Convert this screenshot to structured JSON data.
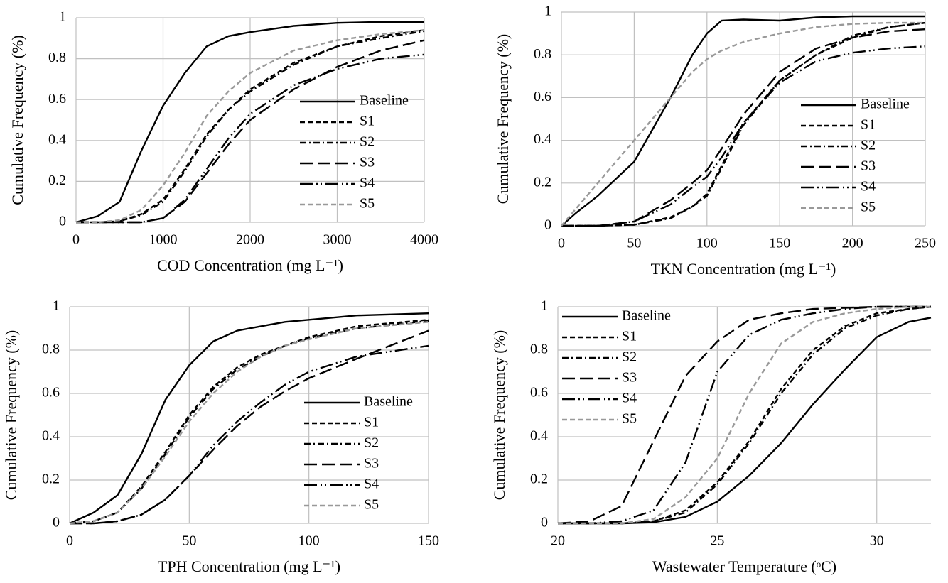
{
  "chart_data": [
    {
      "type": "line",
      "xlabel": "COD Concentration (mg L⁻¹)",
      "ylabel": "Cumulative Frequency (%)",
      "x": [
        0,
        250,
        500,
        750,
        1000,
        1250,
        1500,
        1750,
        2000,
        2500,
        3000,
        3500,
        4000
      ],
      "xlim": [
        0,
        4000
      ],
      "xticks": [
        0,
        1000,
        2000,
        3000,
        4000
      ],
      "ylim": [
        0,
        1
      ],
      "yticks": [
        0,
        0.2,
        0.4,
        0.6,
        0.8,
        1
      ],
      "grid": true,
      "legend": "lower right",
      "series": [
        {
          "name": "Baseline",
          "color": "#000000",
          "dash": "solid",
          "values": [
            0,
            0.03,
            0.1,
            0.35,
            0.57,
            0.73,
            0.86,
            0.91,
            0.93,
            0.96,
            0.975,
            0.98,
            0.98
          ]
        },
        {
          "name": "S1",
          "color": "#000000",
          "dash": "dash",
          "values": [
            0,
            0,
            0.005,
            0.04,
            0.11,
            0.26,
            0.43,
            0.55,
            0.65,
            0.78,
            0.86,
            0.91,
            0.94
          ]
        },
        {
          "name": "S2",
          "color": "#000000",
          "dash": "dashdot",
          "values": [
            0,
            0,
            0.005,
            0.035,
            0.1,
            0.25,
            0.42,
            0.55,
            0.64,
            0.77,
            0.86,
            0.9,
            0.935
          ]
        },
        {
          "name": "S3",
          "color": "#000000",
          "dash": "longdash",
          "values": [
            0,
            0,
            0,
            0,
            0.02,
            0.1,
            0.24,
            0.38,
            0.5,
            0.65,
            0.76,
            0.84,
            0.89
          ]
        },
        {
          "name": "S4",
          "color": "#000000",
          "dash": "longdashdotdot",
          "values": [
            0,
            0,
            0,
            0,
            0.02,
            0.11,
            0.26,
            0.41,
            0.53,
            0.67,
            0.75,
            0.8,
            0.82
          ]
        },
        {
          "name": "S5",
          "color": "#999999",
          "dash": "dash",
          "values": [
            0,
            0,
            0.01,
            0.06,
            0.18,
            0.34,
            0.52,
            0.64,
            0.73,
            0.84,
            0.89,
            0.92,
            0.94
          ]
        }
      ]
    },
    {
      "type": "line",
      "xlabel": "TKN Concentration (mg L⁻¹)",
      "ylabel": "Cumulative Frequency (%)",
      "x": [
        0,
        10,
        25,
        50,
        75,
        90,
        100,
        110,
        125,
        150,
        175,
        200,
        225,
        250
      ],
      "xlim": [
        0,
        250
      ],
      "xticks": [
        0,
        50,
        100,
        150,
        200,
        250
      ],
      "ylim": [
        0,
        1
      ],
      "yticks": [
        0,
        0.2,
        0.4,
        0.6,
        0.8,
        1
      ],
      "grid": true,
      "legend": "lower right",
      "series": [
        {
          "name": "Baseline",
          "color": "#000000",
          "dash": "solid",
          "values": [
            0,
            0.06,
            0.14,
            0.3,
            0.6,
            0.8,
            0.9,
            0.96,
            0.965,
            0.96,
            0.975,
            0.98,
            0.98,
            0.98
          ]
        },
        {
          "name": "S1",
          "color": "#000000",
          "dash": "dash",
          "values": [
            0,
            0,
            0,
            0.005,
            0.04,
            0.09,
            0.15,
            0.28,
            0.48,
            0.68,
            0.8,
            0.88,
            0.93,
            0.95
          ]
        },
        {
          "name": "S2",
          "color": "#000000",
          "dash": "dashdot",
          "values": [
            0,
            0,
            0,
            0.005,
            0.035,
            0.09,
            0.14,
            0.27,
            0.47,
            0.68,
            0.8,
            0.89,
            0.93,
            0.95
          ]
        },
        {
          "name": "S3",
          "color": "#000000",
          "dash": "longdash",
          "values": [
            0,
            0,
            0,
            0.02,
            0.12,
            0.2,
            0.26,
            0.36,
            0.52,
            0.72,
            0.83,
            0.88,
            0.91,
            0.92
          ]
        },
        {
          "name": "S4",
          "color": "#000000",
          "dash": "longdashdotdot",
          "values": [
            0,
            0,
            0,
            0.02,
            0.1,
            0.18,
            0.23,
            0.32,
            0.48,
            0.67,
            0.77,
            0.81,
            0.83,
            0.84
          ]
        },
        {
          "name": "S5",
          "color": "#999999",
          "dash": "dash",
          "values": [
            0,
            0.08,
            0.2,
            0.4,
            0.6,
            0.72,
            0.78,
            0.82,
            0.86,
            0.9,
            0.93,
            0.945,
            0.95,
            0.95
          ]
        }
      ]
    },
    {
      "type": "line",
      "xlabel": "TPH Concentration (mg L⁻¹)",
      "ylabel": "Cumulative Frequency (%)",
      "x": [
        0,
        10,
        20,
        30,
        40,
        50,
        60,
        70,
        80,
        90,
        100,
        120,
        150
      ],
      "xlim": [
        0,
        150
      ],
      "xticks": [
        0,
        50,
        100,
        150
      ],
      "ylim": [
        0,
        1
      ],
      "yticks": [
        0,
        0.2,
        0.4,
        0.6,
        0.8,
        1
      ],
      "grid": true,
      "legend": "lower right",
      "series": [
        {
          "name": "Baseline",
          "color": "#000000",
          "dash": "solid",
          "values": [
            0,
            0.05,
            0.13,
            0.32,
            0.57,
            0.73,
            0.84,
            0.89,
            0.91,
            0.93,
            0.94,
            0.96,
            0.97
          ]
        },
        {
          "name": "S1",
          "color": "#000000",
          "dash": "dash",
          "values": [
            0,
            0.01,
            0.05,
            0.17,
            0.33,
            0.5,
            0.63,
            0.72,
            0.78,
            0.82,
            0.86,
            0.91,
            0.94
          ]
        },
        {
          "name": "S2",
          "color": "#000000",
          "dash": "dashdot",
          "values": [
            0,
            0.01,
            0.05,
            0.16,
            0.32,
            0.49,
            0.62,
            0.71,
            0.77,
            0.82,
            0.855,
            0.9,
            0.935
          ]
        },
        {
          "name": "S3",
          "color": "#000000",
          "dash": "longdash",
          "values": [
            0,
            0,
            0.01,
            0.04,
            0.11,
            0.22,
            0.34,
            0.45,
            0.54,
            0.61,
            0.67,
            0.76,
            0.89
          ]
        },
        {
          "name": "S4",
          "color": "#000000",
          "dash": "longdashdotdot",
          "values": [
            0,
            0,
            0.01,
            0.04,
            0.11,
            0.22,
            0.36,
            0.47,
            0.56,
            0.64,
            0.7,
            0.77,
            0.82
          ]
        },
        {
          "name": "S5",
          "color": "#999999",
          "dash": "dash",
          "values": [
            0,
            0.01,
            0.05,
            0.16,
            0.31,
            0.47,
            0.6,
            0.7,
            0.77,
            0.82,
            0.85,
            0.9,
            0.93
          ]
        }
      ]
    },
    {
      "type": "line",
      "xlabel": "Wastewater Temperature (ᵒC)",
      "ylabel": "Cumulative Frequency (%)",
      "x": [
        20,
        21,
        22,
        23,
        24,
        25,
        26,
        27,
        28,
        29,
        30,
        31,
        31.7
      ],
      "xlim": [
        20,
        31.7
      ],
      "xticks": [
        20,
        25,
        30
      ],
      "ylim": [
        0,
        1
      ],
      "yticks": [
        0,
        0.2,
        0.4,
        0.6,
        0.8,
        1
      ],
      "grid": true,
      "legend": "upper left",
      "series": [
        {
          "name": "Baseline",
          "color": "#000000",
          "dash": "solid",
          "values": [
            0,
            0,
            0,
            0.005,
            0.03,
            0.1,
            0.22,
            0.37,
            0.55,
            0.71,
            0.86,
            0.93,
            0.95
          ]
        },
        {
          "name": "S1",
          "color": "#000000",
          "dash": "dash",
          "values": [
            0,
            0,
            0,
            0.01,
            0.06,
            0.19,
            0.38,
            0.62,
            0.8,
            0.91,
            0.97,
            0.99,
            1
          ]
        },
        {
          "name": "S2",
          "color": "#000000",
          "dash": "dashdot",
          "values": [
            0,
            0,
            0,
            0.01,
            0.05,
            0.18,
            0.37,
            0.6,
            0.78,
            0.9,
            0.96,
            0.99,
            1
          ]
        },
        {
          "name": "S3",
          "color": "#000000",
          "dash": "longdash",
          "values": [
            0,
            0.01,
            0.08,
            0.38,
            0.68,
            0.84,
            0.94,
            0.97,
            0.99,
            0.995,
            1,
            1,
            1
          ]
        },
        {
          "name": "S4",
          "color": "#000000",
          "dash": "longdashdotdot",
          "values": [
            0,
            0,
            0.01,
            0.06,
            0.28,
            0.7,
            0.87,
            0.94,
            0.97,
            0.99,
            1,
            1,
            1
          ]
        },
        {
          "name": "S5",
          "color": "#999999",
          "dash": "dash",
          "values": [
            0,
            0,
            0,
            0.02,
            0.12,
            0.3,
            0.6,
            0.83,
            0.93,
            0.97,
            0.99,
            1,
            1
          ]
        }
      ]
    }
  ]
}
